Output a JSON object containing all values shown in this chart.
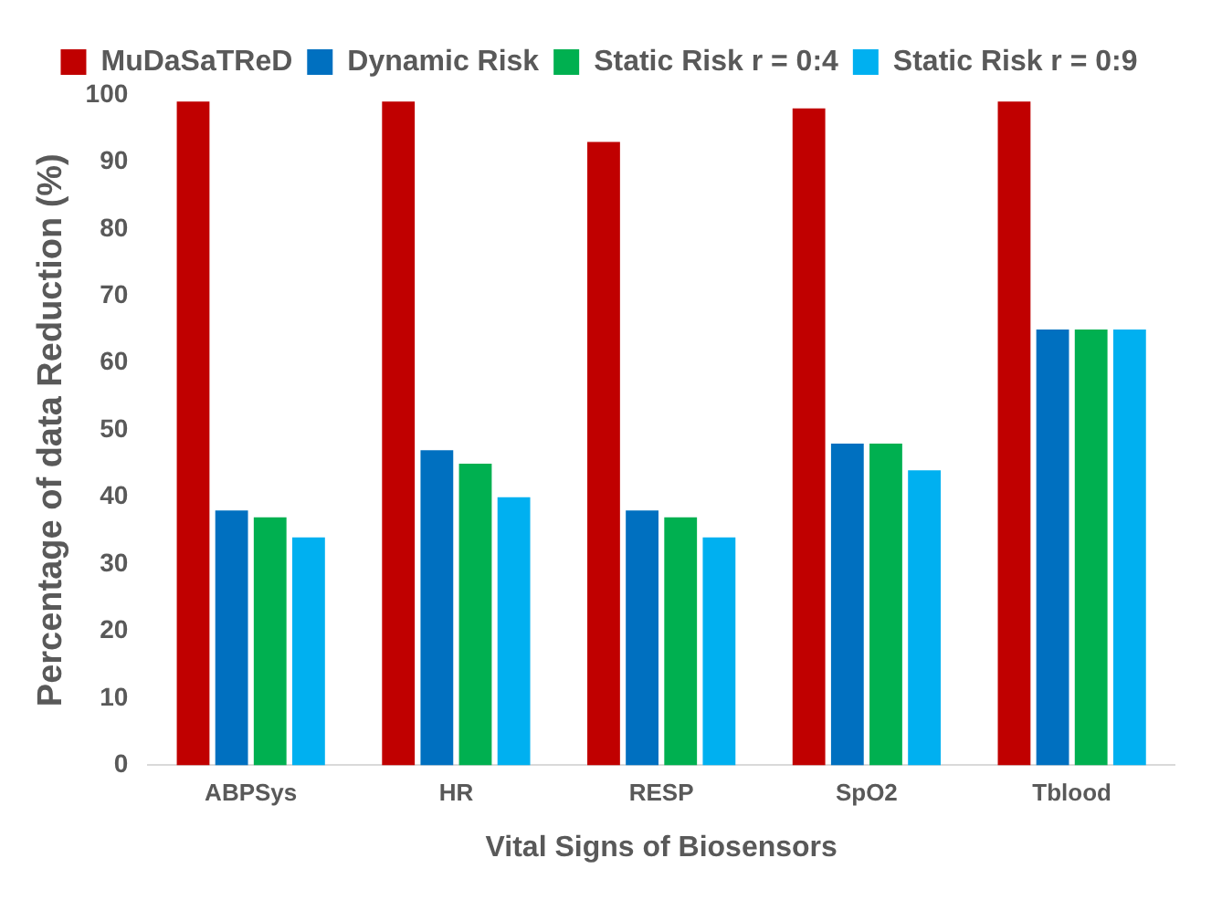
{
  "chart_data": {
    "type": "bar",
    "xlabel": "Vital Signs of Biosensors",
    "ylabel": "Percentage of data Reduction (%)",
    "categories": [
      "ABPSys",
      "HR",
      "RESP",
      "SpO2",
      "Tblood"
    ],
    "series": [
      {
        "name": "MuDaSaTReD",
        "color": "#c00000",
        "values": [
          99,
          99,
          93,
          98,
          99
        ]
      },
      {
        "name": "Dynamic Risk",
        "color": "#0070c0",
        "values": [
          38,
          47,
          38,
          48,
          65
        ]
      },
      {
        "name": "Static Risk r = 0:4",
        "color": "#00b050",
        "values": [
          37,
          45,
          37,
          48,
          65
        ]
      },
      {
        "name": "Static Risk r = 0:9",
        "color": "#00b0f0",
        "values": [
          34,
          40,
          34,
          44,
          65
        ]
      }
    ],
    "ylim": [
      0,
      100
    ],
    "yticks": [
      0,
      10,
      20,
      30,
      40,
      50,
      60,
      70,
      80,
      90,
      100
    ],
    "grid": false,
    "legend": "top"
  }
}
